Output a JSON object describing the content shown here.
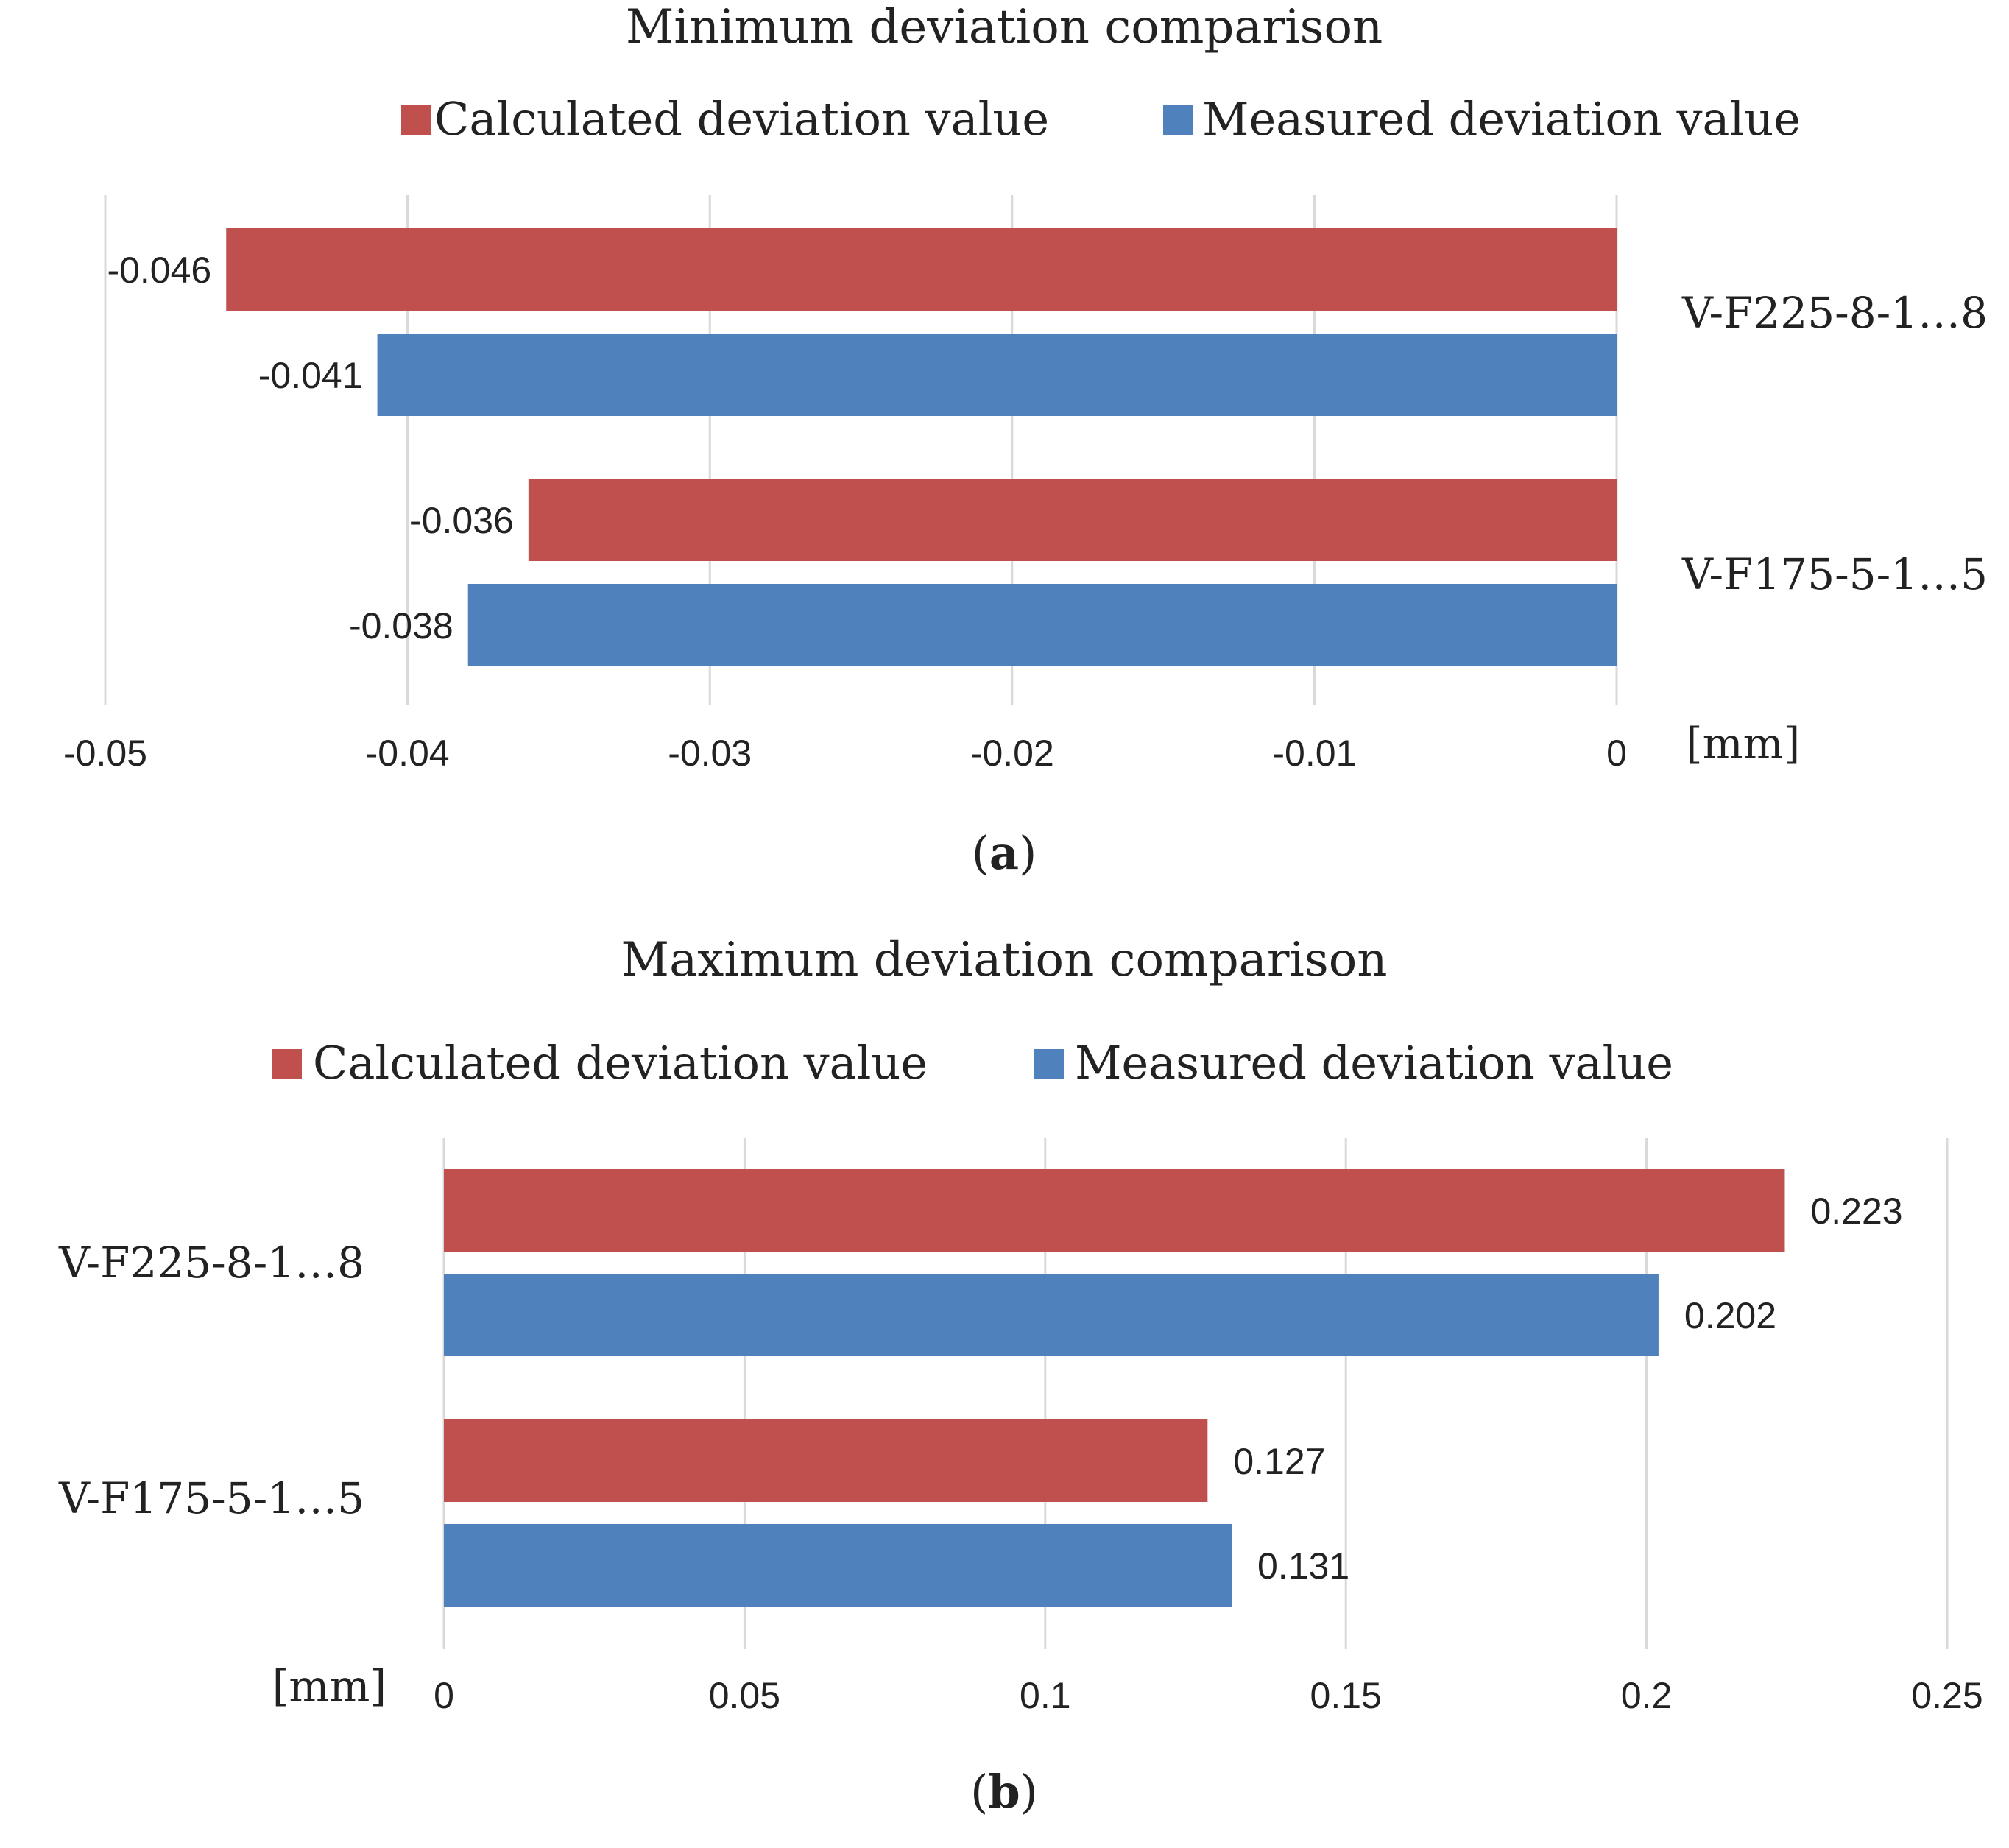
{
  "colors": {
    "calculated": "#c0504d",
    "measured": "#4f81bd"
  },
  "chart_data": [
    {
      "type": "bar",
      "orientation": "horizontal",
      "title": "Minimum deviation comparison",
      "panel_letter": "a",
      "unit_label": "[mm]",
      "categories": [
        "V-F225-8-1…8",
        "V-F175-5-1…5"
      ],
      "series": [
        {
          "name": "Calculated deviation value",
          "values": [
            -0.046,
            -0.036
          ],
          "labels": [
            "-0.046",
            "-0.036"
          ]
        },
        {
          "name": "Measured deviation value",
          "values": [
            -0.041,
            -0.038
          ],
          "labels": [
            "-0.041",
            "-0.038"
          ]
        }
      ],
      "xlim": [
        -0.05,
        0
      ],
      "ticks": [
        -0.05,
        -0.04,
        -0.03,
        -0.02,
        -0.01,
        0
      ],
      "tick_labels": [
        "-0.05",
        "-0.04",
        "-0.03",
        "-0.02",
        "-0.01",
        "0"
      ],
      "category_axis_side": "right",
      "legend_position": "top",
      "grid": true
    },
    {
      "type": "bar",
      "orientation": "horizontal",
      "title": "Maximum deviation comparison",
      "panel_letter": "b",
      "unit_label": "[mm]",
      "categories": [
        "V-F225-8-1…8",
        "V-F175-5-1…5"
      ],
      "series": [
        {
          "name": "Calculated deviation value",
          "values": [
            0.223,
            0.127
          ],
          "labels": [
            "0.223",
            "0.127"
          ]
        },
        {
          "name": "Measured deviation value",
          "values": [
            0.202,
            0.131
          ],
          "labels": [
            "0.202",
            "0.131"
          ]
        }
      ],
      "xlim": [
        0,
        0.25
      ],
      "ticks": [
        0,
        0.05,
        0.1,
        0.15,
        0.2,
        0.25
      ],
      "tick_labels": [
        "0",
        "0.05",
        "0.1",
        "0.15",
        "0.2",
        "0.25"
      ],
      "category_axis_side": "left",
      "legend_position": "top",
      "grid": true
    }
  ]
}
